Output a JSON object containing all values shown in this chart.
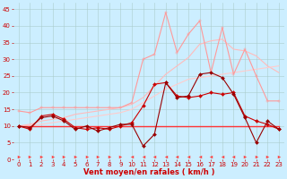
{
  "x": [
    0,
    1,
    2,
    3,
    4,
    5,
    6,
    7,
    8,
    9,
    10,
    11,
    12,
    13,
    14,
    15,
    16,
    17,
    18,
    19,
    20,
    21,
    22,
    23
  ],
  "background_color": "#cceeff",
  "grid_color": "#aacccc",
  "xlabel": "Vent moyen/en rafales ( km/h )",
  "ylabel_ticks": [
    0,
    5,
    10,
    15,
    20,
    25,
    30,
    35,
    40,
    45
  ],
  "series": [
    {
      "name": "line1_light_pink_spiky",
      "color": "#ff9999",
      "linewidth": 0.8,
      "marker": "+",
      "markersize": 3,
      "data": [
        14.5,
        14.0,
        15.5,
        15.5,
        15.5,
        15.5,
        15.5,
        15.5,
        15.5,
        15.5,
        17.0,
        30.0,
        31.5,
        44.0,
        32.0,
        37.5,
        41.5,
        26.0,
        39.5,
        25.5,
        33.0,
        25.0,
        17.5,
        17.5
      ]
    },
    {
      "name": "line2_light_pink_rising_upper",
      "color": "#ffbbbb",
      "linewidth": 0.8,
      "marker": null,
      "markersize": 0,
      "data": [
        10.0,
        10.5,
        11.5,
        12.0,
        12.5,
        13.5,
        14.0,
        14.5,
        15.0,
        15.5,
        16.5,
        18.5,
        22.0,
        25.5,
        28.0,
        30.5,
        34.5,
        35.5,
        36.0,
        33.0,
        32.5,
        31.0,
        28.0,
        26.0
      ]
    },
    {
      "name": "line3_light_pink_rising_lower",
      "color": "#ffcccc",
      "linewidth": 0.8,
      "marker": null,
      "markersize": 0,
      "data": [
        10.0,
        10.2,
        10.5,
        11.0,
        11.5,
        12.0,
        12.5,
        13.0,
        13.5,
        14.0,
        15.0,
        17.0,
        19.0,
        21.0,
        22.5,
        24.0,
        24.5,
        25.0,
        25.5,
        26.0,
        26.5,
        27.0,
        27.5,
        28.0
      ]
    },
    {
      "name": "line4_red_flat",
      "color": "#ff3333",
      "linewidth": 1.0,
      "marker": null,
      "markersize": 0,
      "data": [
        10.0,
        10.0,
        10.0,
        10.0,
        10.0,
        10.0,
        10.0,
        10.0,
        10.0,
        10.0,
        10.0,
        10.0,
        10.0,
        10.0,
        10.0,
        10.0,
        10.0,
        10.0,
        10.0,
        10.0,
        10.0,
        10.0,
        10.0,
        10.0
      ]
    },
    {
      "name": "line5_dark_red_main",
      "color": "#cc0000",
      "linewidth": 0.8,
      "marker": "D",
      "markersize": 2,
      "data": [
        10.0,
        9.0,
        13.0,
        13.5,
        12.0,
        9.5,
        9.0,
        9.5,
        9.0,
        10.0,
        11.0,
        16.0,
        22.5,
        23.0,
        19.0,
        18.5,
        19.0,
        20.0,
        19.5,
        20.0,
        13.0,
        11.5,
        10.5,
        9.0
      ]
    },
    {
      "name": "line6_dark_red_lower",
      "color": "#990000",
      "linewidth": 0.8,
      "marker": "D",
      "markersize": 2,
      "data": [
        10.0,
        9.5,
        12.5,
        13.0,
        11.5,
        9.0,
        10.0,
        8.5,
        9.5,
        10.5,
        10.5,
        4.0,
        7.5,
        23.0,
        18.5,
        19.0,
        25.5,
        26.0,
        24.5,
        19.5,
        12.5,
        5.0,
        11.5,
        9.0
      ]
    }
  ],
  "arrow_directions": [
    1,
    1,
    1,
    1,
    1,
    1,
    1,
    1,
    1,
    1,
    -1,
    -1,
    -1,
    -1,
    -1,
    -1,
    -1,
    -1,
    -1,
    -1,
    1,
    1,
    1,
    1
  ],
  "xlim": [
    -0.5,
    23.5
  ],
  "ylim": [
    0,
    47
  ],
  "xlabel_color": "#cc0000",
  "xlabel_fontsize": 6,
  "tick_color": "#cc0000",
  "tick_fontsize": 5
}
